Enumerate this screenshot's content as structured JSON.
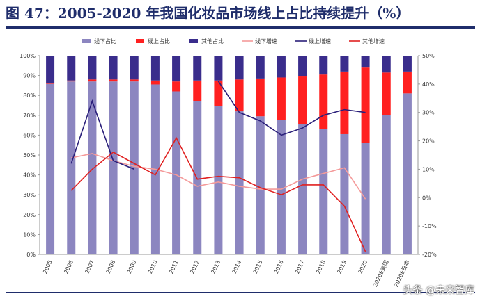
{
  "header": {
    "title": "图 47：2005-2020 年我国化妆品市场线上占比持续提升（%）"
  },
  "watermark": "头条 @未来智库",
  "colors": {
    "offline_share": "#8c86c0",
    "online_share": "#ff2020",
    "other_share": "#3a2d8c",
    "offline_growth": "#f49a9a",
    "online_growth": "#2a1f7a",
    "other_growth": "#e02020",
    "title": "#1f2d6b"
  },
  "chart_data": {
    "type": "bar",
    "title": "图 47：2005-2020 年我国化妆品市场线上占比持续提升（%）",
    "categories": [
      "2005",
      "2006",
      "2007",
      "2008",
      "2009",
      "2010",
      "2011",
      "2012",
      "2013",
      "2014",
      "2015",
      "2016",
      "2017",
      "2018",
      "2019",
      "2020",
      "2020E美国",
      "2020E日本"
    ],
    "stacked": true,
    "left_axis": {
      "ylim": [
        0,
        100
      ],
      "ticks": [
        "0%",
        "10%",
        "20%",
        "30%",
        "40%",
        "50%",
        "60%",
        "70%",
        "80%",
        "90%",
        "100%"
      ]
    },
    "right_axis": {
      "ylim": [
        -20,
        50
      ],
      "ticks": [
        "-20%",
        "-10%",
        "0%",
        "10%",
        "20%",
        "30%",
        "40%",
        "50%"
      ]
    },
    "bar_series": [
      {
        "name": "线下占比",
        "values": [
          85.8,
          87.0,
          87.0,
          87.0,
          87.0,
          85.5,
          82.0,
          77.0,
          74.5,
          72.0,
          69.5,
          67.5,
          65.5,
          63.0,
          60.5,
          56.0,
          70.0,
          81.0
        ]
      },
      {
        "name": "线上占比",
        "values": [
          0.5,
          0.5,
          1.0,
          1.0,
          1.0,
          2.0,
          5.0,
          10.5,
          13.0,
          16.0,
          19.0,
          21.5,
          24.0,
          27.5,
          31.5,
          38.0,
          21.5,
          11.0
        ]
      },
      {
        "name": "其他占比",
        "values": [
          13.7,
          12.5,
          12.0,
          12.0,
          12.0,
          12.5,
          13.0,
          12.5,
          12.5,
          12.0,
          11.5,
          11.0,
          10.5,
          9.5,
          8.0,
          6.0,
          8.5,
          8.0
        ]
      }
    ],
    "line_series": [
      {
        "name": "线下增速",
        "values": [
          null,
          14.0,
          15.5,
          13.0,
          11.0,
          10.0,
          8.0,
          4.0,
          5.5,
          4.0,
          3.0,
          3.0,
          6.5,
          8.5,
          10.5,
          -0.5,
          null,
          null
        ]
      },
      {
        "name": "线上增速",
        "values": [
          null,
          12.0,
          34.0,
          13.0,
          10.0,
          null,
          null,
          null,
          41.0,
          30.0,
          27.0,
          22.0,
          24.5,
          29.0,
          31.0,
          30.0,
          null,
          null
        ]
      },
      {
        "name": "其他增速",
        "values": [
          null,
          2.5,
          10.0,
          16.0,
          12.0,
          8.0,
          21.0,
          6.5,
          7.5,
          7.0,
          3.5,
          1.0,
          4.5,
          4.5,
          -3.0,
          -19.0,
          null,
          null
        ]
      }
    ],
    "legend_position": "top",
    "grid": false
  }
}
